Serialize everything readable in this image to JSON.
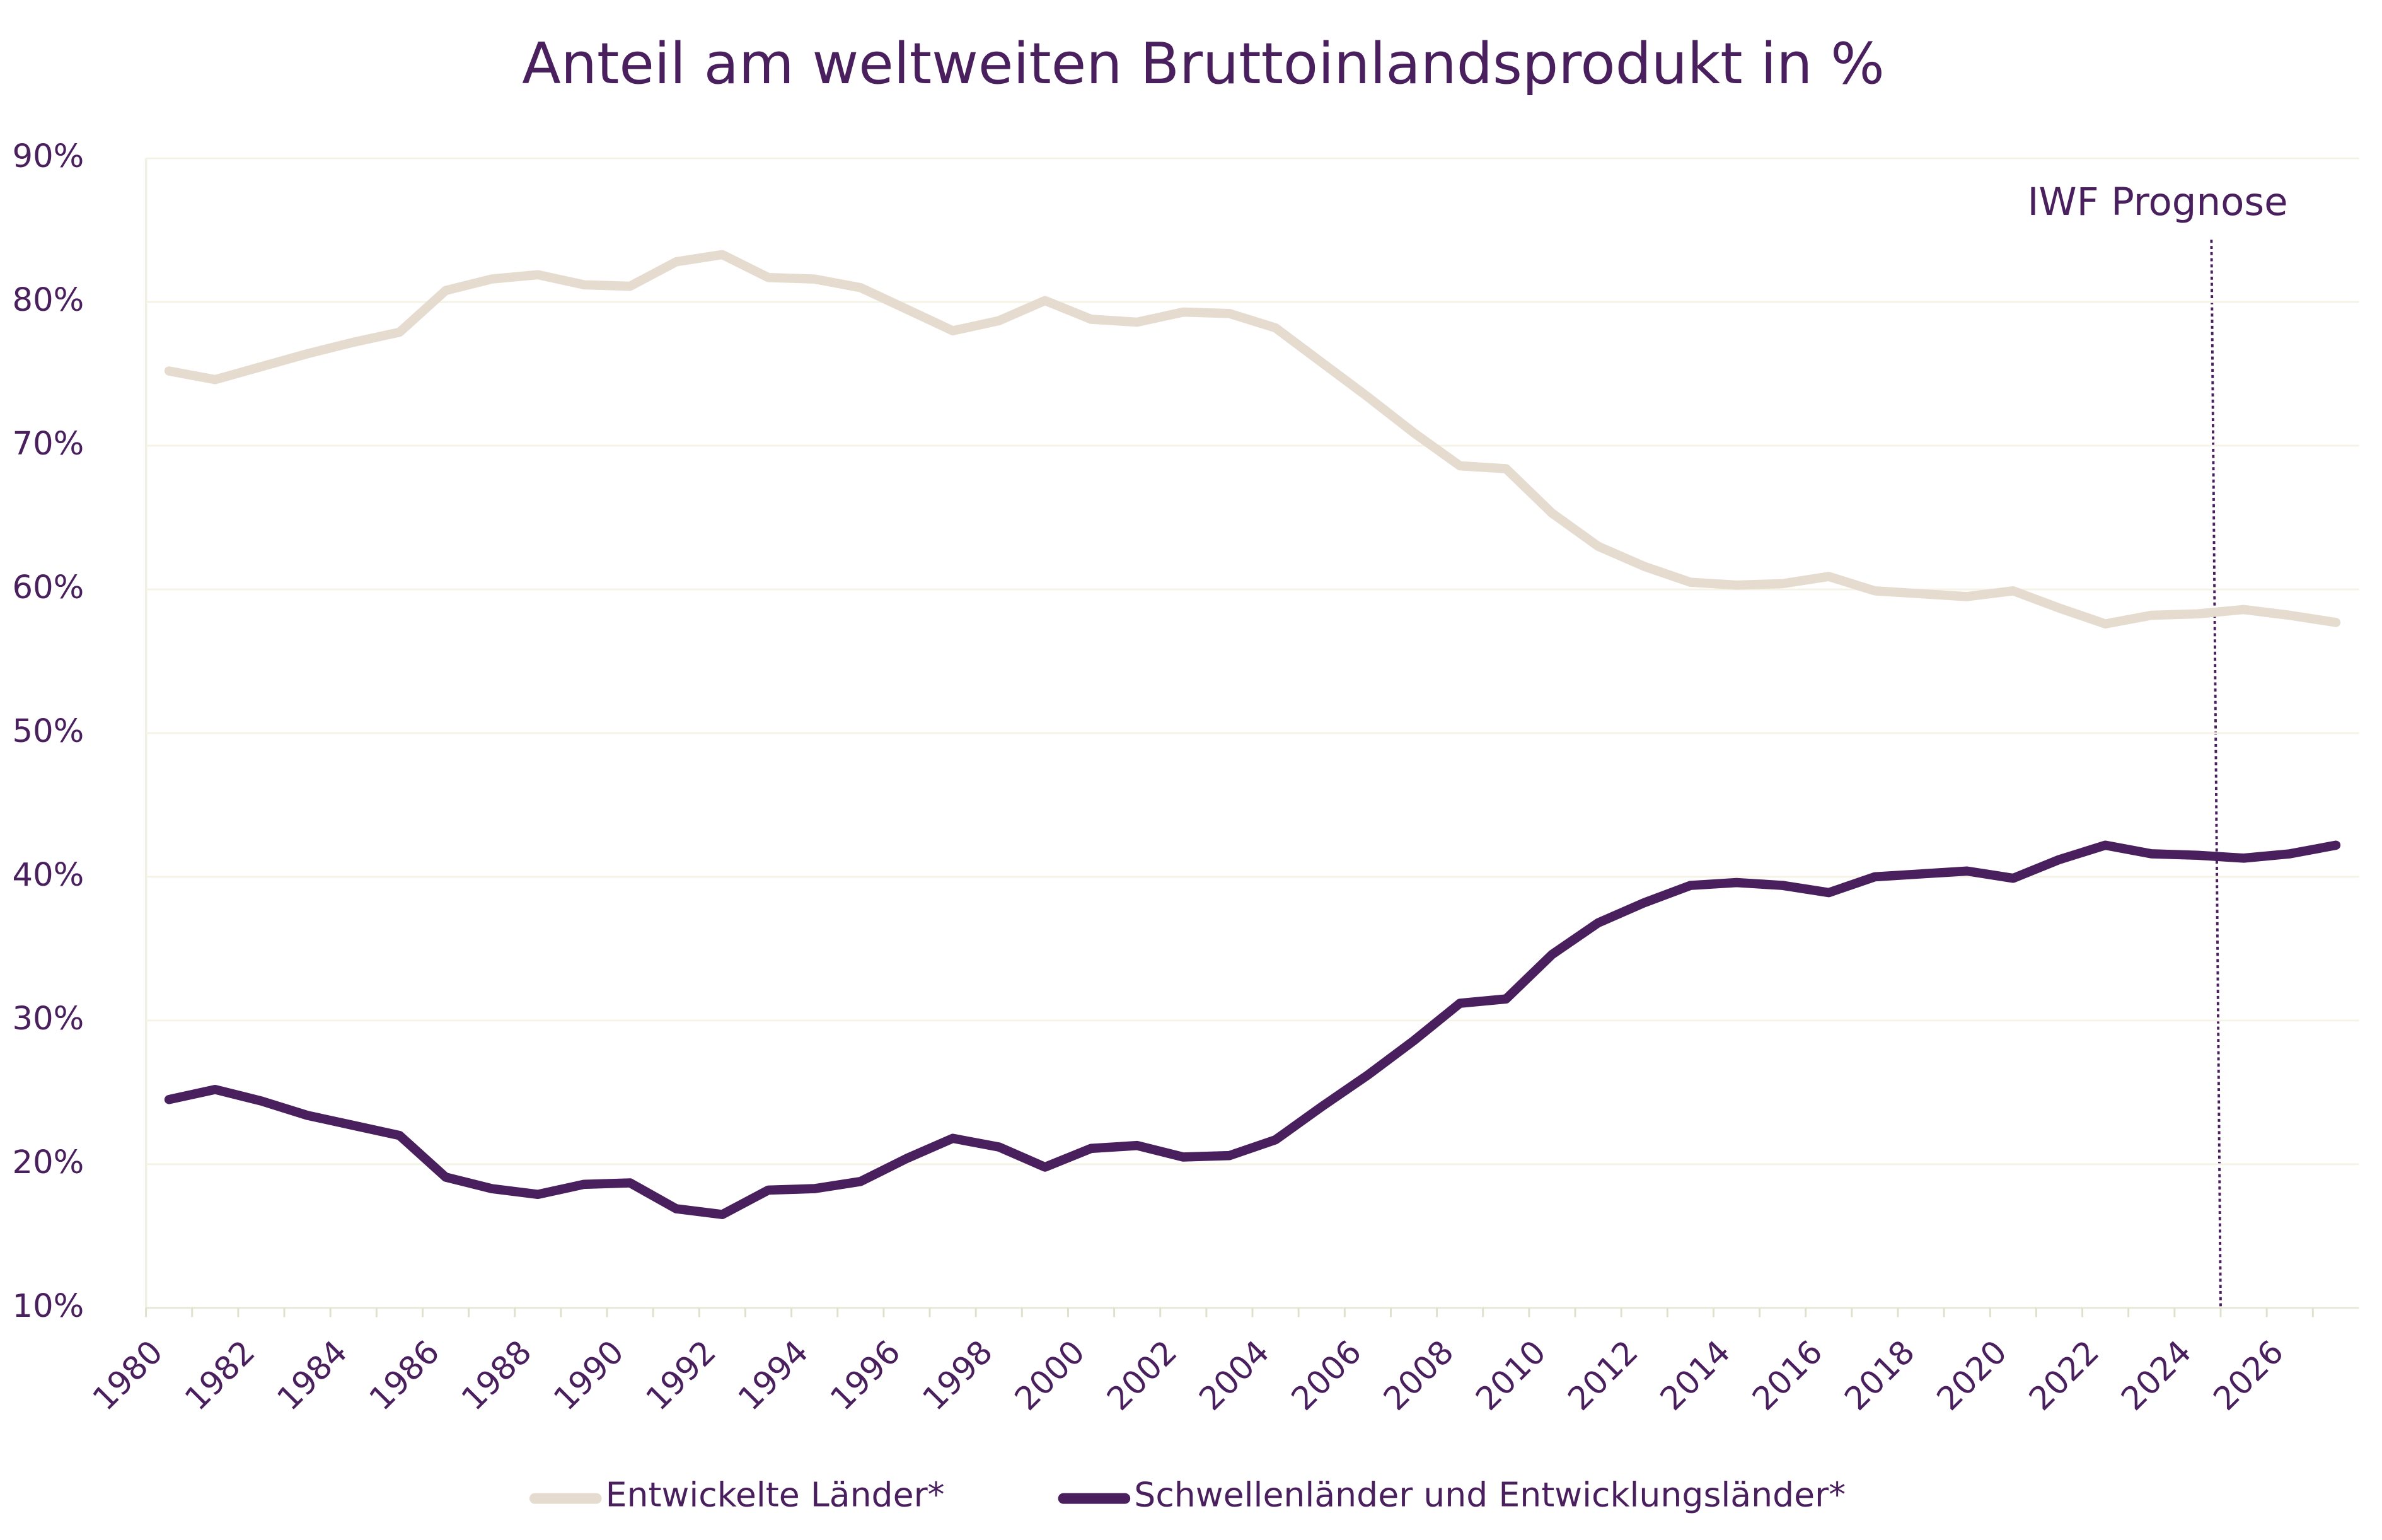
{
  "chart_data": {
    "type": "line",
    "title": "Anteil am weltweiten Bruttoinlandsprodukt in %",
    "annotation": "IWF Prognose",
    "categories": [
      "1980",
      null,
      "1982",
      null,
      "1984",
      null,
      "1986",
      null,
      "1988",
      null,
      "1990",
      null,
      "1992",
      null,
      "1994",
      null,
      "1996",
      null,
      "1998",
      null,
      "2000",
      null,
      "2002",
      null,
      "2004",
      null,
      "2006",
      null,
      "2008",
      null,
      "2010",
      null,
      "2012",
      null,
      "2014",
      null,
      "2016",
      null,
      "2018",
      null,
      "2020",
      null,
      "2022",
      null,
      "2024",
      null,
      "2026",
      null
    ],
    "series": [
      {
        "name": "Entwickelte Länder*",
        "color": "#e6dbcf",
        "values": [
          75.2,
          74.6,
          75.5,
          76.4,
          77.2,
          77.9,
          80.8,
          81.6,
          81.9,
          81.2,
          81.1,
          82.8,
          83.3,
          81.7,
          81.6,
          81.0,
          79.5,
          78.0,
          78.7,
          80.1,
          78.8,
          78.6,
          79.3,
          79.2,
          78.2,
          75.8,
          73.4,
          70.9,
          68.6,
          68.4,
          65.3,
          63.0,
          61.6,
          60.5,
          60.3,
          60.4,
          60.9,
          59.9,
          59.7,
          59.5,
          59.9,
          58.7,
          57.6,
          58.2,
          58.3,
          58.6,
          58.2,
          57.7
        ]
      },
      {
        "name": "Schwellenländer und Entwicklungsländer*",
        "color": "#4a1f5e",
        "values": [
          24.5,
          25.2,
          24.4,
          23.4,
          22.7,
          22.0,
          19.1,
          18.3,
          17.9,
          18.6,
          18.7,
          16.9,
          16.5,
          18.2,
          18.3,
          18.8,
          20.4,
          21.8,
          21.2,
          19.8,
          21.1,
          21.3,
          20.5,
          20.6,
          21.7,
          24.0,
          26.2,
          28.6,
          31.2,
          31.5,
          34.6,
          36.8,
          38.2,
          39.4,
          39.6,
          39.4,
          38.9,
          40.0,
          40.2,
          40.4,
          39.9,
          41.2,
          42.2,
          41.6,
          41.5,
          41.3,
          41.6,
          42.2
        ]
      }
    ],
    "ylim": [
      10,
      90
    ],
    "yticks": [
      {
        "value": 10,
        "label": "10%"
      },
      {
        "value": 20,
        "label": "20%"
      },
      {
        "value": 30,
        "label": "30%"
      },
      {
        "value": 40,
        "label": "40%"
      },
      {
        "value": 50,
        "label": "50%"
      },
      {
        "value": 60,
        "label": "60%"
      },
      {
        "value": 70,
        "label": "70%"
      },
      {
        "value": 80,
        "label": "80%"
      },
      {
        "value": 90,
        "label": "90%"
      }
    ],
    "grid": true
  }
}
